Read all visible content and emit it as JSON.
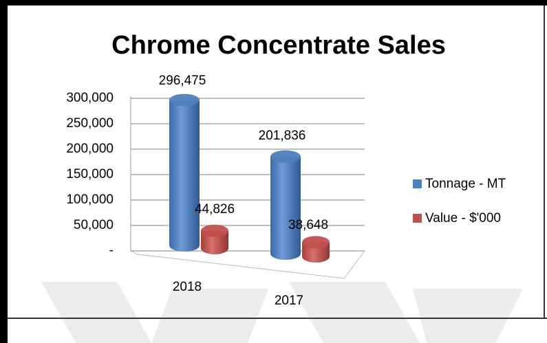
{
  "chart_data": {
    "type": "bar3d",
    "title": "Chrome Concentrate Sales",
    "categories": [
      "2018",
      "2017"
    ],
    "series": [
      {
        "name": "Tonnage - MT",
        "color": "#4f81bd",
        "values": [
          296475,
          201836
        ],
        "value_labels": [
          "296,475",
          "201,836"
        ]
      },
      {
        "name": "Value - $'000",
        "color": "#c0504d",
        "values": [
          44826,
          38648
        ],
        "value_labels": [
          "44,826",
          "38,648"
        ]
      }
    ],
    "ylim": [
      0,
      300000
    ],
    "yticks": [
      {
        "value": 0,
        "label": "-"
      },
      {
        "value": 50000,
        "label": "50,000"
      },
      {
        "value": 100000,
        "label": "100,000"
      },
      {
        "value": 150000,
        "label": "150,000"
      },
      {
        "value": 200000,
        "label": "200,000"
      },
      {
        "value": 250000,
        "label": "250,000"
      },
      {
        "value": 300000,
        "label": "300,000"
      }
    ],
    "grid": true,
    "legend": "right"
  }
}
